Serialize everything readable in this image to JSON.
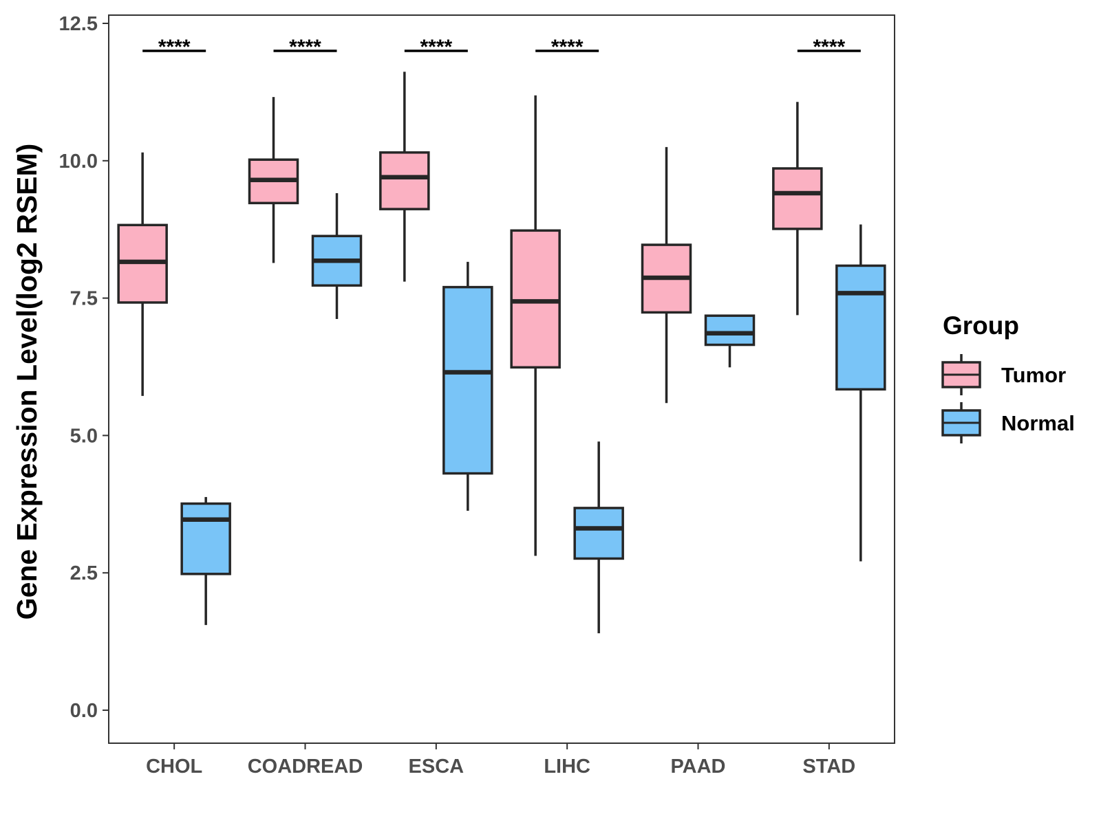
{
  "chart_data": {
    "type": "boxplot",
    "title": "",
    "xlabel": "",
    "ylabel": "Gene Expression Level(log2 RSEM)",
    "ylim": [
      -0.6,
      12.65
    ],
    "yticks": [
      0.0,
      2.5,
      5.0,
      7.5,
      10.0,
      12.5
    ],
    "ytick_labels": [
      "0.0",
      "2.5",
      "5.0",
      "7.5",
      "10.0",
      "12.5"
    ],
    "categories": [
      "CHOL",
      "COADREAD",
      "ESCA",
      "LIHC",
      "PAAD",
      "STAD"
    ],
    "legend": {
      "title": "Group",
      "position": "right"
    },
    "series": [
      {
        "name": "Tumor",
        "color": "#FBB1C2",
        "boxes": [
          {
            "category": "CHOL",
            "min": 5.72,
            "q1": 7.42,
            "median": 8.16,
            "q3": 8.83,
            "max": 10.15
          },
          {
            "category": "COADREAD",
            "min": 8.14,
            "q1": 9.23,
            "median": 9.65,
            "q3": 10.02,
            "max": 11.16
          },
          {
            "category": "ESCA",
            "min": 7.8,
            "q1": 9.12,
            "median": 9.7,
            "q3": 10.15,
            "max": 11.62
          },
          {
            "category": "LIHC",
            "min": 2.81,
            "q1": 6.24,
            "median": 7.44,
            "q3": 8.73,
            "max": 11.19
          },
          {
            "category": "PAAD",
            "min": 5.59,
            "q1": 7.24,
            "median": 7.87,
            "q3": 8.47,
            "max": 10.25
          },
          {
            "category": "STAD",
            "min": 7.19,
            "q1": 8.76,
            "median": 9.41,
            "q3": 9.86,
            "max": 11.07
          }
        ]
      },
      {
        "name": "Normal",
        "color": "#79C4F7",
        "boxes": [
          {
            "category": "CHOL",
            "min": 1.55,
            "q1": 2.48,
            "median": 3.47,
            "q3": 3.76,
            "max": 3.88
          },
          {
            "category": "COADREAD",
            "min": 7.12,
            "q1": 7.73,
            "median": 8.18,
            "q3": 8.63,
            "max": 9.41
          },
          {
            "category": "ESCA",
            "min": 3.63,
            "q1": 4.31,
            "median": 6.15,
            "q3": 7.7,
            "max": 8.16
          },
          {
            "category": "LIHC",
            "min": 1.4,
            "q1": 2.76,
            "median": 3.31,
            "q3": 3.68,
            "max": 4.89
          },
          {
            "category": "PAAD",
            "min": 6.24,
            "q1": 6.65,
            "median": 6.86,
            "q3": 7.18,
            "max": 7.18
          },
          {
            "category": "STAD",
            "min": 2.71,
            "q1": 5.84,
            "median": 7.59,
            "q3": 8.09,
            "max": 8.84
          }
        ]
      }
    ],
    "significance": [
      {
        "category": "CHOL",
        "label": "****"
      },
      {
        "category": "COADREAD",
        "label": "****"
      },
      {
        "category": "ESCA",
        "label": "****"
      },
      {
        "category": "LIHC",
        "label": "****"
      },
      {
        "category": "PAAD",
        "label": ""
      },
      {
        "category": "STAD",
        "label": "****"
      }
    ]
  }
}
